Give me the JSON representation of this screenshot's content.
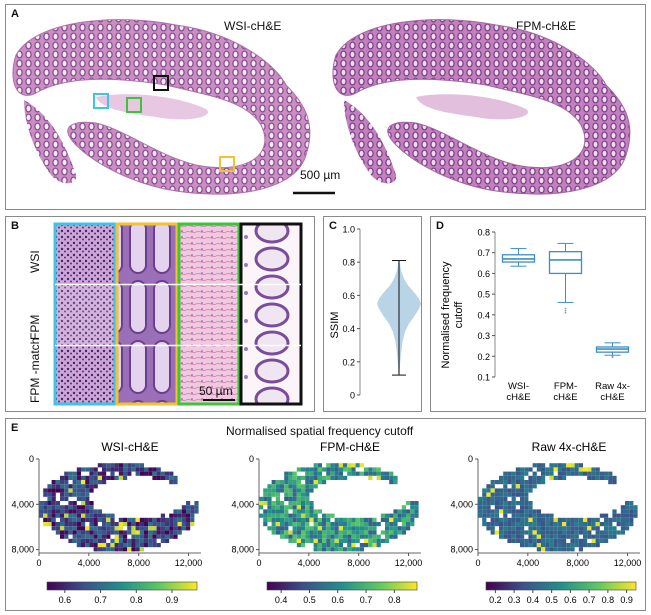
{
  "panelA": {
    "label": "A",
    "left_title": "WSI-cH&E",
    "right_title": "FPM-cH&E",
    "scalebar": "500 µm",
    "colors": {
      "tissue": "#c98fc0",
      "crypt": "#8a4a96",
      "lumen": "#f6ecf3",
      "box_cyan": "#3fc3e8",
      "box_green": "#3cc43c",
      "box_black": "#111111",
      "box_yellow": "#f1c232"
    }
  },
  "panelB": {
    "label": "B",
    "row_labels": [
      "WSI",
      "FPM",
      "FPM -match"
    ],
    "scalebar": "50 µm",
    "column_colors": [
      "#3fc3e8",
      "#f1c232",
      "#3cc43c",
      "#111111"
    ]
  },
  "panelC": {
    "label": "C",
    "chart_data": {
      "type": "violin",
      "ylabel": "SSIM",
      "ylim": [
        0,
        1.0
      ],
      "yticks": [
        0,
        0.2,
        0.4,
        0.6,
        0.8,
        1.0
      ],
      "whisker_min": 0.12,
      "whisker_max": 0.81,
      "density": [
        [
          0.12,
          0.005
        ],
        [
          0.18,
          0.01
        ],
        [
          0.25,
          0.02
        ],
        [
          0.32,
          0.035
        ],
        [
          0.38,
          0.06
        ],
        [
          0.43,
          0.1
        ],
        [
          0.48,
          0.16
        ],
        [
          0.52,
          0.2
        ],
        [
          0.55,
          0.22
        ],
        [
          0.58,
          0.2
        ],
        [
          0.62,
          0.15
        ],
        [
          0.66,
          0.09
        ],
        [
          0.7,
          0.05
        ],
        [
          0.75,
          0.02
        ],
        [
          0.81,
          0.005
        ]
      ],
      "color": "#b9d4e6"
    }
  },
  "panelD": {
    "label": "D",
    "chart_data": {
      "type": "box",
      "ylabel": [
        "Normalised frequency",
        "cutoff"
      ],
      "ylim": [
        0.1,
        0.8
      ],
      "yticks": [
        0.1,
        0.2,
        0.3,
        0.4,
        0.5,
        0.6,
        0.7,
        0.8
      ],
      "categories": [
        [
          "WSI-",
          "cH&E"
        ],
        [
          "FPM-",
          "cH&E"
        ],
        [
          "Raw 4x-",
          "cH&E"
        ]
      ],
      "boxes": [
        {
          "min": 0.635,
          "q1": 0.655,
          "median": 0.67,
          "q3": 0.69,
          "max": 0.72,
          "outliers": []
        },
        {
          "min": 0.46,
          "q1": 0.6,
          "median": 0.665,
          "q3": 0.705,
          "max": 0.745,
          "outliers": [
            0.43,
            0.42,
            0.41
          ]
        },
        {
          "min": 0.205,
          "q1": 0.22,
          "median": 0.235,
          "q3": 0.245,
          "max": 0.265,
          "outliers": [
            0.2,
            0.195
          ]
        }
      ],
      "color": "#3b8fc4"
    }
  },
  "panelE": {
    "label": "E",
    "title": "Normalised spatial frequency cutoff",
    "maps": [
      {
        "title": "WSI-cH&E",
        "cbar_ticks": [
          "0.6",
          "0.7",
          "0.8",
          "0.9"
        ],
        "cbar_min": 0.55,
        "cbar_max": 0.97,
        "value_mean": 0.63,
        "value_spread": 0.08
      },
      {
        "title": "FPM-cH&E",
        "cbar_ticks": [
          "0.4",
          "0.5",
          "0.6",
          "0.7",
          "0.8"
        ],
        "cbar_min": 0.35,
        "cbar_max": 0.88,
        "value_mean": 0.62,
        "value_spread": 0.12
      },
      {
        "title": "Raw 4x-cH&E",
        "cbar_ticks": [
          "0.2",
          "0.3",
          "0.4",
          "0.5",
          "0.6",
          "0.7",
          "0.8",
          "0.9"
        ],
        "cbar_min": 0.15,
        "cbar_max": 0.95,
        "value_mean": 0.42,
        "value_spread": 0.07
      }
    ],
    "x_ticks": [
      "0",
      "4,000",
      "8,000",
      "12,000"
    ],
    "y_ticks": [
      "0",
      "4,000",
      "8,000"
    ],
    "x_tick_values": [
      0,
      4000,
      8000,
      12000
    ],
    "y_tick_values": [
      0,
      4000,
      8000
    ],
    "x_range": [
      0,
      13000
    ],
    "y_range": [
      0,
      8300
    ]
  }
}
